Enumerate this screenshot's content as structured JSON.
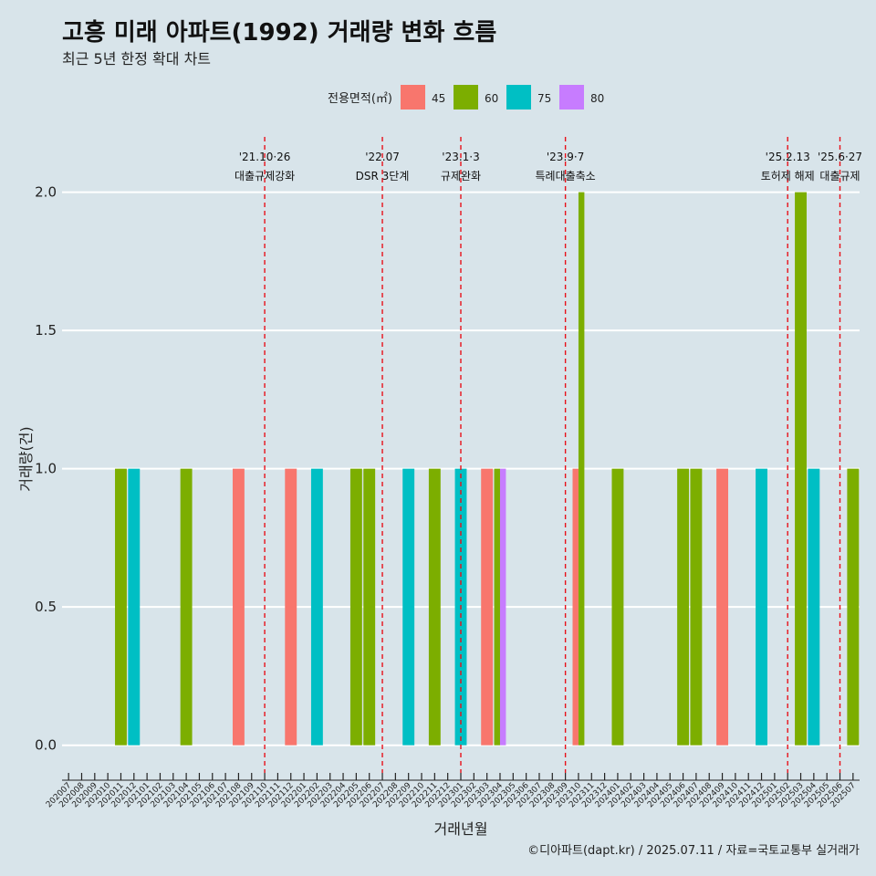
{
  "chart_data": {
    "type": "bar",
    "title": "고흥 미래 아파트(1992) 거래량 변화 흐름",
    "subtitle": "최근 5년 한정 확대 차트",
    "xlabel": "거래년월",
    "ylabel": "거래량(건)",
    "caption": "©디아파트(dapt.kr) / 2025.07.11 / 자료=국토교통부 실거래가",
    "ylim": [
      -0.1,
      2.2
    ],
    "yticks": [
      {
        "value": 0,
        "label": "0.0"
      },
      {
        "value": 0.5,
        "label": "0.5"
      },
      {
        "value": 1.0,
        "label": "1.0"
      },
      {
        "value": 1.5,
        "label": "1.5"
      },
      {
        "value": 2.0,
        "label": "2.0"
      }
    ],
    "grid": true,
    "legend": {
      "title": "전용면적(㎡)",
      "placement": "top",
      "items": [
        {
          "label": "45",
          "color": "#F8766D"
        },
        {
          "label": "60",
          "color": "#7CAE00"
        },
        {
          "label": "75",
          "color": "#00BFC4"
        },
        {
          "label": "80",
          "color": "#C77CFF"
        }
      ]
    },
    "categories": [
      "202007",
      "202008",
      "202009",
      "202010",
      "202011",
      "202012",
      "202101",
      "202102",
      "202103",
      "202104",
      "202105",
      "202106",
      "202107",
      "202108",
      "202109",
      "202110",
      "202111",
      "202112",
      "202201",
      "202202",
      "202203",
      "202204",
      "202205",
      "202206",
      "202207",
      "202208",
      "202209",
      "202210",
      "202211",
      "202212",
      "202301",
      "202302",
      "202303",
      "202304",
      "202305",
      "202306",
      "202307",
      "202308",
      "202309",
      "202310",
      "202311",
      "202312",
      "202401",
      "202402",
      "202403",
      "202404",
      "202405",
      "202406",
      "202407",
      "202408",
      "202409",
      "202410",
      "202411",
      "202412",
      "202501",
      "202502",
      "202503",
      "202504",
      "202505",
      "202506",
      "202507"
    ],
    "bars": [
      {
        "month": "202011",
        "area": "60",
        "value": 1
      },
      {
        "month": "202012",
        "area": "75",
        "value": 1
      },
      {
        "month": "202104",
        "area": "60",
        "value": 1
      },
      {
        "month": "202108",
        "area": "45",
        "value": 1
      },
      {
        "month": "202112",
        "area": "45",
        "value": 1
      },
      {
        "month": "202202",
        "area": "75",
        "value": 1
      },
      {
        "month": "202205",
        "area": "60",
        "value": 1
      },
      {
        "month": "202206",
        "area": "60",
        "value": 1
      },
      {
        "month": "202209",
        "area": "75",
        "value": 1
      },
      {
        "month": "202211",
        "area": "60",
        "value": 1
      },
      {
        "month": "202301",
        "area": "75",
        "value": 1
      },
      {
        "month": "202303",
        "area": "45",
        "value": 1
      },
      {
        "month": "202304",
        "area": "60",
        "value": 1
      },
      {
        "month": "202304",
        "area": "80",
        "value": 1
      },
      {
        "month": "202310",
        "area": "45",
        "value": 1
      },
      {
        "month": "202310",
        "area": "60",
        "value": 2
      },
      {
        "month": "202401",
        "area": "60",
        "value": 1
      },
      {
        "month": "202406",
        "area": "60",
        "value": 1
      },
      {
        "month": "202407",
        "area": "60",
        "value": 1
      },
      {
        "month": "202409",
        "area": "45",
        "value": 1
      },
      {
        "month": "202412",
        "area": "75",
        "value": 1
      },
      {
        "month": "202503",
        "area": "60",
        "value": 2
      },
      {
        "month": "202504",
        "area": "75",
        "value": 1
      },
      {
        "month": "202507",
        "area": "60",
        "value": 1
      }
    ],
    "events": [
      {
        "month": "202110",
        "date": "'21.10·26",
        "label": "대출규제강화"
      },
      {
        "month": "202207",
        "date": "'22.07",
        "label": "DSR 3단계"
      },
      {
        "month": "202301",
        "date": "'23.1·3",
        "label": "규제완화"
      },
      {
        "month": "202309",
        "date": "'23.9·7",
        "label": "특례대출축소"
      },
      {
        "month": "202502",
        "date": "'25.2.13",
        "label": "토허제 해제"
      },
      {
        "month": "202506",
        "date": "'25.6·27",
        "label": "대출규제"
      }
    ]
  }
}
